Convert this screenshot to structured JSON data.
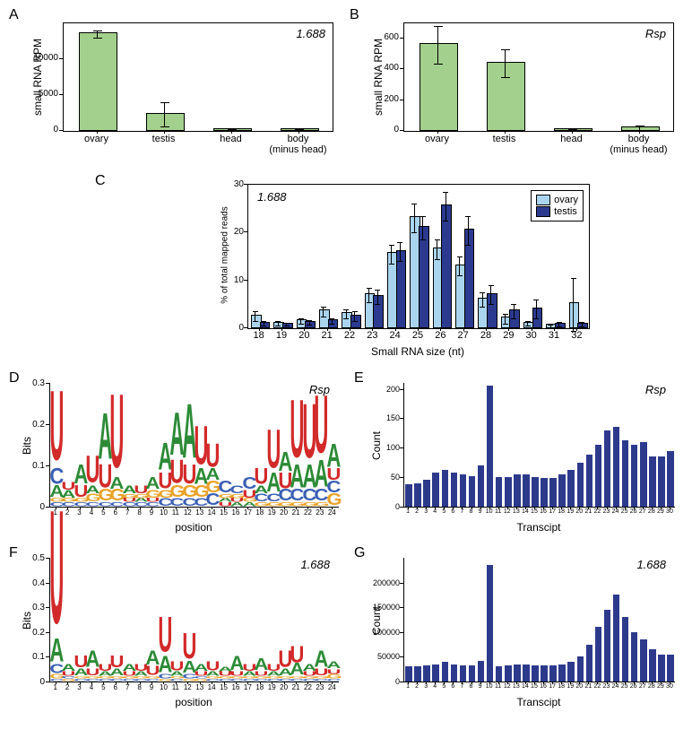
{
  "colors": {
    "bar_green": "#a3d08c",
    "bar_lightblue": "#aad4ee",
    "bar_darkblue": "#2b3a8f",
    "hist_blue": "#2d3a8c",
    "logo_A": "#2d8b37",
    "logo_U": "#d22a2a",
    "logo_G": "#e8a32a",
    "logo_C": "#3b5fb3",
    "black": "#000000",
    "white": "#ffffff"
  },
  "panels": {
    "A": {
      "letter": "A",
      "title": "1.688",
      "ylab": "small RNA RPM",
      "categories": [
        "ovary",
        "testis",
        "head",
        "body\n(minus head)"
      ],
      "values": [
        13500,
        2300,
        150,
        150
      ],
      "errors": [
        500,
        1700,
        80,
        100
      ],
      "ylim": [
        0,
        15000
      ],
      "yticks": [
        0,
        5000,
        10000
      ]
    },
    "B": {
      "letter": "B",
      "title": "Rsp",
      "ylab": "small RNA RPM",
      "categories": [
        "ovary",
        "testis",
        "head",
        "body\n(minus head)"
      ],
      "values": [
        560,
        440,
        8,
        18
      ],
      "errors": [
        120,
        90,
        5,
        15
      ],
      "ylim": [
        0,
        700
      ],
      "yticks": [
        0,
        200,
        400,
        600
      ]
    },
    "C": {
      "letter": "C",
      "title": "1.688",
      "ylab": "% of total mapped reads",
      "xlab": "Small RNA size (nt)",
      "x": [
        18,
        19,
        20,
        21,
        22,
        23,
        24,
        25,
        26,
        27,
        28,
        29,
        30,
        31,
        32
      ],
      "ovary": [
        2.5,
        1.0,
        1.5,
        3.5,
        3.0,
        7.0,
        15.5,
        23.0,
        16.5,
        13.0,
        6.0,
        2.0,
        1.0,
        0.5,
        5.0
      ],
      "testis": [
        1.0,
        0.8,
        1.2,
        1.5,
        2.5,
        6.5,
        16.0,
        21.0,
        25.5,
        20.5,
        7.0,
        3.5,
        4.0,
        0.8,
        0.8
      ],
      "ovary_err": [
        1.0,
        0.5,
        0.5,
        1.0,
        1.0,
        1.5,
        2.0,
        3.0,
        2.0,
        2.0,
        1.5,
        1.0,
        0.5,
        0.3,
        5.5
      ],
      "testis_err": [
        0.5,
        0.3,
        0.5,
        0.5,
        1.0,
        1.5,
        2.0,
        2.5,
        3.0,
        3.0,
        2.0,
        1.5,
        2.0,
        0.5,
        0.5
      ],
      "ylim": [
        0,
        30
      ],
      "yticks": [
        0,
        10,
        20,
        30
      ],
      "legend": [
        "ovary",
        "testis"
      ]
    },
    "D": {
      "letter": "D",
      "title": "Rsp",
      "ylab": "Bits",
      "xlab": "position",
      "ylim": [
        0,
        0.3
      ],
      "yticks": [
        0,
        0.1,
        0.2,
        0.3
      ],
      "positions": 24,
      "stacks": [
        [
          [
            "C",
            0.01
          ],
          [
            "G",
            0.01
          ],
          [
            "A",
            0.03
          ],
          [
            "C",
            0.04
          ],
          [
            "U",
            0.18
          ]
        ],
        [
          [
            "C",
            0.01
          ],
          [
            "G",
            0.01
          ],
          [
            "A",
            0.02
          ],
          [
            "U",
            0.02
          ]
        ],
        [
          [
            "C",
            0.01
          ],
          [
            "G",
            0.01
          ],
          [
            "U",
            0.03
          ],
          [
            "A",
            0.05
          ]
        ],
        [
          [
            "C",
            0.01
          ],
          [
            "G",
            0.02
          ],
          [
            "A",
            0.02
          ],
          [
            "U",
            0.07
          ]
        ],
        [
          [
            "C",
            0.01
          ],
          [
            "G",
            0.03
          ],
          [
            "U",
            0.06
          ],
          [
            "A",
            0.12
          ]
        ],
        [
          [
            "C",
            0.01
          ],
          [
            "G",
            0.03
          ],
          [
            "A",
            0.03
          ],
          [
            "U",
            0.19
          ]
        ],
        [
          [
            "C",
            0.01
          ],
          [
            "U",
            0.01
          ],
          [
            "G",
            0.01
          ],
          [
            "A",
            0.02
          ]
        ],
        [
          [
            "C",
            0.01
          ],
          [
            "A",
            0.01
          ],
          [
            "G",
            0.01
          ],
          [
            "U",
            0.02
          ]
        ],
        [
          [
            "C",
            0.01
          ],
          [
            "U",
            0.01
          ],
          [
            "G",
            0.02
          ],
          [
            "A",
            0.03
          ]
        ],
        [
          [
            "C",
            0.02
          ],
          [
            "G",
            0.02
          ],
          [
            "U",
            0.04
          ],
          [
            "A",
            0.07
          ]
        ],
        [
          [
            "C",
            0.02
          ],
          [
            "G",
            0.03
          ],
          [
            "U",
            0.06
          ],
          [
            "A",
            0.11
          ]
        ],
        [
          [
            "C",
            0.02
          ],
          [
            "G",
            0.03
          ],
          [
            "U",
            0.05
          ],
          [
            "A",
            0.14
          ]
        ],
        [
          [
            "C",
            0.02
          ],
          [
            "G",
            0.03
          ],
          [
            "A",
            0.04
          ],
          [
            "U",
            0.1
          ]
        ],
        [
          [
            "C",
            0.03
          ],
          [
            "G",
            0.03
          ],
          [
            "A",
            0.03
          ],
          [
            "U",
            0.06
          ]
        ],
        [
          [
            "U",
            0.01
          ],
          [
            "A",
            0.01
          ],
          [
            "G",
            0.01
          ],
          [
            "C",
            0.03
          ]
        ],
        [
          [
            "A",
            0.01
          ],
          [
            "U",
            0.01
          ],
          [
            "G",
            0.01
          ],
          [
            "C",
            0.02
          ]
        ],
        [
          [
            "A",
            0.01
          ],
          [
            "G",
            0.01
          ],
          [
            "U",
            0.02
          ],
          [
            "C",
            0.03
          ]
        ],
        [
          [
            "G",
            0.01
          ],
          [
            "C",
            0.02
          ],
          [
            "A",
            0.02
          ],
          [
            "U",
            0.04
          ]
        ],
        [
          [
            "G",
            0.01
          ],
          [
            "C",
            0.02
          ],
          [
            "A",
            0.05
          ],
          [
            "U",
            0.1
          ]
        ],
        [
          [
            "G",
            0.01
          ],
          [
            "C",
            0.03
          ],
          [
            "U",
            0.04
          ],
          [
            "A",
            0.05
          ]
        ],
        [
          [
            "G",
            0.01
          ],
          [
            "C",
            0.03
          ],
          [
            "A",
            0.06
          ],
          [
            "U",
            0.15
          ]
        ],
        [
          [
            "G",
            0.01
          ],
          [
            "C",
            0.03
          ],
          [
            "A",
            0.06
          ],
          [
            "U",
            0.14
          ]
        ],
        [
          [
            "G",
            0.01
          ],
          [
            "C",
            0.03
          ],
          [
            "A",
            0.07
          ],
          [
            "U",
            0.15
          ]
        ],
        [
          [
            "G",
            0.03
          ],
          [
            "C",
            0.03
          ],
          [
            "U",
            0.03
          ],
          [
            "A",
            0.06
          ]
        ]
      ]
    },
    "E": {
      "letter": "E",
      "title": "Rsp",
      "ylab": "Count",
      "xlab": "Transcipt",
      "ylim": [
        0,
        210
      ],
      "yticks": [
        0,
        50,
        100,
        150,
        200
      ],
      "x": 30,
      "values": [
        38,
        40,
        45,
        58,
        62,
        58,
        55,
        52,
        70,
        205,
        50,
        50,
        55,
        55,
        50,
        48,
        48,
        55,
        62,
        75,
        88,
        105,
        130,
        135,
        112,
        105,
        110,
        85,
        85,
        95
      ]
    },
    "F": {
      "letter": "F",
      "title": "1.688",
      "ylab": "Bits",
      "xlab": "position",
      "ylim": [
        0,
        0.5
      ],
      "yticks": [
        0,
        0.1,
        0.2,
        0.3,
        0.4,
        0.5
      ],
      "positions": 24,
      "stacks": [
        [
          [
            "C",
            0.01
          ],
          [
            "G",
            0.02
          ],
          [
            "C",
            0.04
          ],
          [
            "A",
            0.1
          ],
          [
            "U",
            0.49
          ]
        ],
        [
          [
            "G",
            0.01
          ],
          [
            "C",
            0.01
          ],
          [
            "U",
            0.02
          ],
          [
            "A",
            0.03
          ]
        ],
        [
          [
            "C",
            0.01
          ],
          [
            "G",
            0.01
          ],
          [
            "A",
            0.03
          ],
          [
            "U",
            0.05
          ]
        ],
        [
          [
            "C",
            0.01
          ],
          [
            "G",
            0.01
          ],
          [
            "U",
            0.03
          ],
          [
            "A",
            0.07
          ]
        ],
        [
          [
            "C",
            0.01
          ],
          [
            "G",
            0.01
          ],
          [
            "A",
            0.02
          ],
          [
            "U",
            0.03
          ]
        ],
        [
          [
            "C",
            0.01
          ],
          [
            "G",
            0.01
          ],
          [
            "A",
            0.03
          ],
          [
            "U",
            0.05
          ]
        ],
        [
          [
            "C",
            0.01
          ],
          [
            "G",
            0.01
          ],
          [
            "U",
            0.02
          ],
          [
            "A",
            0.03
          ]
        ],
        [
          [
            "C",
            0.01
          ],
          [
            "G",
            0.01
          ],
          [
            "A",
            0.02
          ],
          [
            "U",
            0.03
          ]
        ],
        [
          [
            "C",
            0.01
          ],
          [
            "G",
            0.01
          ],
          [
            "U",
            0.04
          ],
          [
            "A",
            0.06
          ]
        ],
        [
          [
            "G",
            0.01
          ],
          [
            "C",
            0.02
          ],
          [
            "A",
            0.07
          ],
          [
            "U",
            0.15
          ]
        ],
        [
          [
            "C",
            0.01
          ],
          [
            "G",
            0.01
          ],
          [
            "A",
            0.02
          ],
          [
            "U",
            0.04
          ]
        ],
        [
          [
            "G",
            0.01
          ],
          [
            "C",
            0.02
          ],
          [
            "A",
            0.05
          ],
          [
            "U",
            0.11
          ]
        ],
        [
          [
            "G",
            0.01
          ],
          [
            "C",
            0.01
          ],
          [
            "U",
            0.02
          ],
          [
            "A",
            0.03
          ]
        ],
        [
          [
            "C",
            0.01
          ],
          [
            "G",
            0.01
          ],
          [
            "A",
            0.02
          ],
          [
            "U",
            0.04
          ]
        ],
        [
          [
            "C",
            0.01
          ],
          [
            "G",
            0.01
          ],
          [
            "U",
            0.02
          ],
          [
            "A",
            0.02
          ]
        ],
        [
          [
            "C",
            0.01
          ],
          [
            "G",
            0.01
          ],
          [
            "U",
            0.02
          ],
          [
            "A",
            0.06
          ]
        ],
        [
          [
            "C",
            0.01
          ],
          [
            "G",
            0.01
          ],
          [
            "A",
            0.02
          ],
          [
            "U",
            0.03
          ]
        ],
        [
          [
            "C",
            0.01
          ],
          [
            "G",
            0.01
          ],
          [
            "U",
            0.02
          ],
          [
            "A",
            0.05
          ]
        ],
        [
          [
            "C",
            0.01
          ],
          [
            "G",
            0.01
          ],
          [
            "A",
            0.02
          ],
          [
            "U",
            0.03
          ]
        ],
        [
          [
            "C",
            0.01
          ],
          [
            "G",
            0.01
          ],
          [
            "A",
            0.03
          ],
          [
            "U",
            0.07
          ]
        ],
        [
          [
            "C",
            0.01
          ],
          [
            "G",
            0.01
          ],
          [
            "A",
            0.05
          ],
          [
            "U",
            0.07
          ]
        ],
        [
          [
            "C",
            0.01
          ],
          [
            "G",
            0.01
          ],
          [
            "U",
            0.02
          ],
          [
            "A",
            0.03
          ]
        ],
        [
          [
            "C",
            0.01
          ],
          [
            "G",
            0.01
          ],
          [
            "U",
            0.03
          ],
          [
            "A",
            0.07
          ]
        ],
        [
          [
            "C",
            0.01
          ],
          [
            "G",
            0.02
          ],
          [
            "U",
            0.02
          ],
          [
            "A",
            0.03
          ]
        ]
      ]
    },
    "G": {
      "letter": "G",
      "title": "1.688",
      "ylab": "Count",
      "xlab": "Transcipt",
      "ylim": [
        0,
        250000
      ],
      "yticks": [
        0,
        50000,
        100000,
        150000,
        200000
      ],
      "x": 30,
      "values": [
        30000,
        30000,
        32000,
        35000,
        40000,
        35000,
        33000,
        32000,
        42000,
        235000,
        30000,
        32000,
        35000,
        35000,
        33000,
        32000,
        32000,
        35000,
        40000,
        50000,
        75000,
        110000,
        145000,
        175000,
        130000,
        100000,
        85000,
        65000,
        55000,
        55000
      ]
    }
  }
}
